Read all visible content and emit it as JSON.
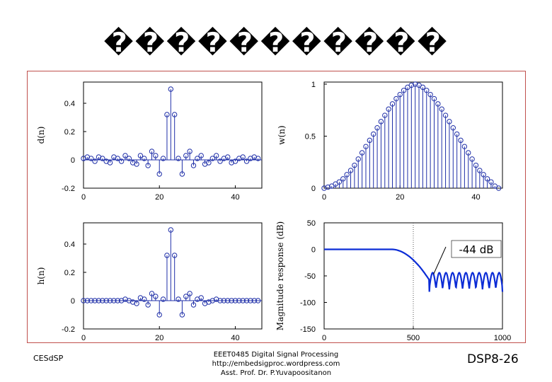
{
  "slide": {
    "title": "�����������",
    "footer_left": "CESdSP",
    "footer_center": [
      "EEET0485 Digital Signal Processing",
      "http://embedsigproc.wordpress.com",
      "Asst. Prof. Dr. P.Yuvapoositanon"
    ],
    "footer_right": "DSP8-26"
  },
  "chart_data": [
    {
      "type": "stem",
      "ylabel": "d(n)",
      "x": [
        0,
        1,
        2,
        3,
        4,
        5,
        6,
        7,
        8,
        9,
        10,
        11,
        12,
        13,
        14,
        15,
        16,
        17,
        18,
        19,
        20,
        21,
        22,
        23,
        24,
        25,
        26,
        27,
        28,
        29,
        30,
        31,
        32,
        33,
        34,
        35,
        36,
        37,
        38,
        39,
        40,
        41,
        42,
        43,
        44,
        45,
        46
      ],
      "y": [
        0.01,
        0.02,
        0.01,
        -0.01,
        0.02,
        0.01,
        -0.01,
        -0.02,
        0.02,
        0.01,
        -0.01,
        0.03,
        0.01,
        -0.02,
        -0.03,
        0.03,
        0.01,
        -0.04,
        0.06,
        0.03,
        -0.1,
        0.01,
        0.32,
        0.5,
        0.32,
        0.01,
        -0.1,
        0.03,
        0.06,
        -0.04,
        0.01,
        0.03,
        -0.03,
        -0.02,
        0.01,
        0.03,
        -0.01,
        0.01,
        0.02,
        -0.02,
        -0.01,
        0.01,
        0.02,
        -0.01,
        0.01,
        0.02,
        0.01
      ],
      "xticks": [
        0,
        20,
        40
      ],
      "yticks": [
        -0.2,
        0,
        0.2,
        0.4
      ],
      "xlim": [
        0,
        47
      ],
      "ylim": [
        -0.2,
        0.55
      ],
      "color": "#1f2fa8"
    },
    {
      "type": "stem",
      "ylabel": "w(n)",
      "x": [
        0,
        1,
        2,
        3,
        4,
        5,
        6,
        7,
        8,
        9,
        10,
        11,
        12,
        13,
        14,
        15,
        16,
        17,
        18,
        19,
        20,
        21,
        22,
        23,
        24,
        25,
        26,
        27,
        28,
        29,
        30,
        31,
        32,
        33,
        34,
        35,
        36,
        37,
        38,
        39,
        40,
        41,
        42,
        43,
        44,
        45,
        46
      ],
      "y": [
        0.0,
        0.01,
        0.02,
        0.04,
        0.06,
        0.09,
        0.13,
        0.17,
        0.22,
        0.28,
        0.34,
        0.4,
        0.46,
        0.52,
        0.58,
        0.64,
        0.7,
        0.76,
        0.81,
        0.86,
        0.9,
        0.94,
        0.97,
        0.99,
        1.0,
        0.99,
        0.97,
        0.94,
        0.9,
        0.86,
        0.81,
        0.76,
        0.7,
        0.64,
        0.58,
        0.52,
        0.46,
        0.4,
        0.34,
        0.28,
        0.22,
        0.17,
        0.13,
        0.09,
        0.06,
        0.02,
        0.0
      ],
      "xticks": [
        0,
        20,
        40
      ],
      "yticks": [
        0,
        0.5,
        1
      ],
      "xlim": [
        0,
        47
      ],
      "ylim": [
        0,
        1.02
      ],
      "color": "#1f2fa8"
    },
    {
      "type": "stem",
      "ylabel": "h(n)",
      "x": [
        0,
        1,
        2,
        3,
        4,
        5,
        6,
        7,
        8,
        9,
        10,
        11,
        12,
        13,
        14,
        15,
        16,
        17,
        18,
        19,
        20,
        21,
        22,
        23,
        24,
        25,
        26,
        27,
        28,
        29,
        30,
        31,
        32,
        33,
        34,
        35,
        36,
        37,
        38,
        39,
        40,
        41,
        42,
        43,
        44,
        45,
        46
      ],
      "y": [
        0.0,
        0.0,
        0.0,
        0.0,
        0.0,
        0.0,
        0.0,
        0.0,
        0.0,
        0.0,
        0.0,
        0.01,
        0.0,
        -0.01,
        -0.02,
        0.02,
        0.01,
        -0.03,
        0.05,
        0.03,
        -0.1,
        0.01,
        0.32,
        0.5,
        0.32,
        0.01,
        -0.1,
        0.03,
        0.05,
        -0.03,
        0.01,
        0.02,
        -0.02,
        -0.01,
        0.0,
        0.01,
        0.0,
        0.0,
        0.0,
        0.0,
        0.0,
        0.0,
        0.0,
        0.0,
        0.0,
        0.0,
        0.0
      ],
      "xticks": [
        0,
        20,
        40
      ],
      "yticks": [
        -0.2,
        0,
        0.2,
        0.4
      ],
      "xlim": [
        0,
        47
      ],
      "ylim": [
        -0.2,
        0.55
      ],
      "color": "#1f2fa8"
    },
    {
      "type": "line",
      "ylabel": "Magnitude response (dB)",
      "annotation": "-44 dB",
      "xticks": [
        0,
        500,
        1000
      ],
      "yticks": [
        -150,
        -100,
        -50,
        0,
        50
      ],
      "xlim": [
        0,
        1000
      ],
      "ylim": [
        -150,
        50
      ],
      "passband_db": 0,
      "rolloff_start_hz": 380,
      "stopband_start_hz": 590,
      "stopband_min_db": -44,
      "stopband_max_db": -80,
      "lobes": 11,
      "color": "#0b2cd6"
    }
  ]
}
